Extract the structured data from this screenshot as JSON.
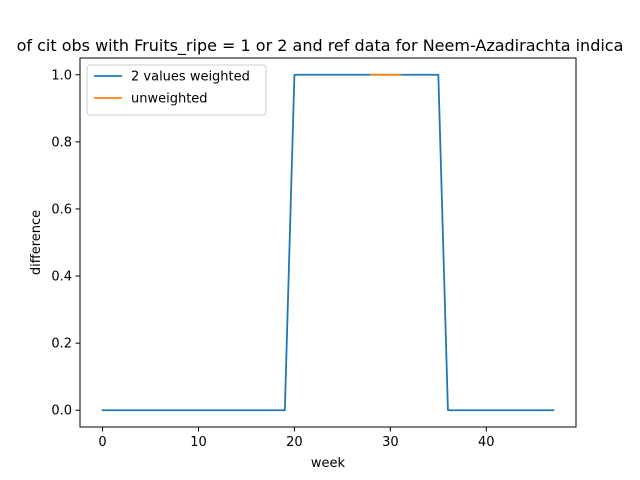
{
  "chart_data": {
    "type": "line",
    "title": "of cit obs with Fruits_ripe = 1 or 2 and ref data for Neem-Azadirachta indica",
    "xlabel": "week",
    "ylabel": "difference",
    "xlim": [
      -2.35,
      49.35
    ],
    "ylim": [
      -0.05,
      1.05
    ],
    "xticks": [
      0,
      10,
      20,
      30,
      40
    ],
    "yticks": [
      0.0,
      0.2,
      0.4,
      0.6,
      0.8,
      1.0
    ],
    "xtick_labels": [
      "0",
      "10",
      "20",
      "30",
      "40"
    ],
    "ytick_labels": [
      "0.0",
      "0.2",
      "0.4",
      "0.6",
      "0.8",
      "1.0"
    ],
    "legend_position": "upper-left",
    "series": [
      {
        "name": "2 values weighted",
        "color": "#1f77b4",
        "x": [
          0,
          19,
          20,
          35,
          36,
          47
        ],
        "y": [
          0,
          0,
          1,
          1,
          0,
          0
        ]
      },
      {
        "name": "unweighted",
        "color": "#ff7f0e",
        "x": [
          28,
          31
        ],
        "y": [
          1,
          1
        ]
      }
    ]
  }
}
